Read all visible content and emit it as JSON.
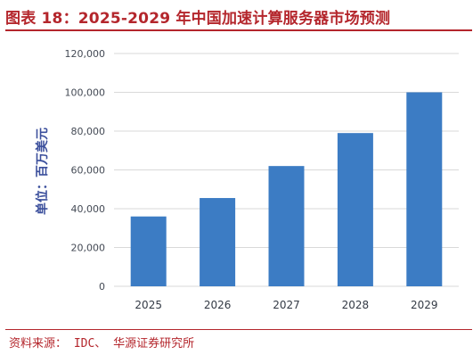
{
  "header": {
    "title": "图表 18：2025-2029 年中国加速计算服务器市场预测"
  },
  "footer": {
    "source": "资料来源： IDC、 华源证券研究所"
  },
  "colors": {
    "accent": "#b4262c",
    "bar": "#3c7cc4",
    "grid": "#d9d9d9",
    "ylabel": "#3b4f9c"
  },
  "chart_data": {
    "type": "bar",
    "categories": [
      "2025",
      "2026",
      "2027",
      "2028",
      "2029"
    ],
    "values": [
      36000,
      45500,
      62000,
      79000,
      100000
    ],
    "ylabel": "单位：百万美元",
    "xlabel": "",
    "ylim": [
      0,
      120000
    ],
    "yticks": [
      "0",
      "20,000",
      "40,000",
      "60,000",
      "80,000",
      "100,000",
      "120,000"
    ],
    "grid": true,
    "legend": "none"
  }
}
